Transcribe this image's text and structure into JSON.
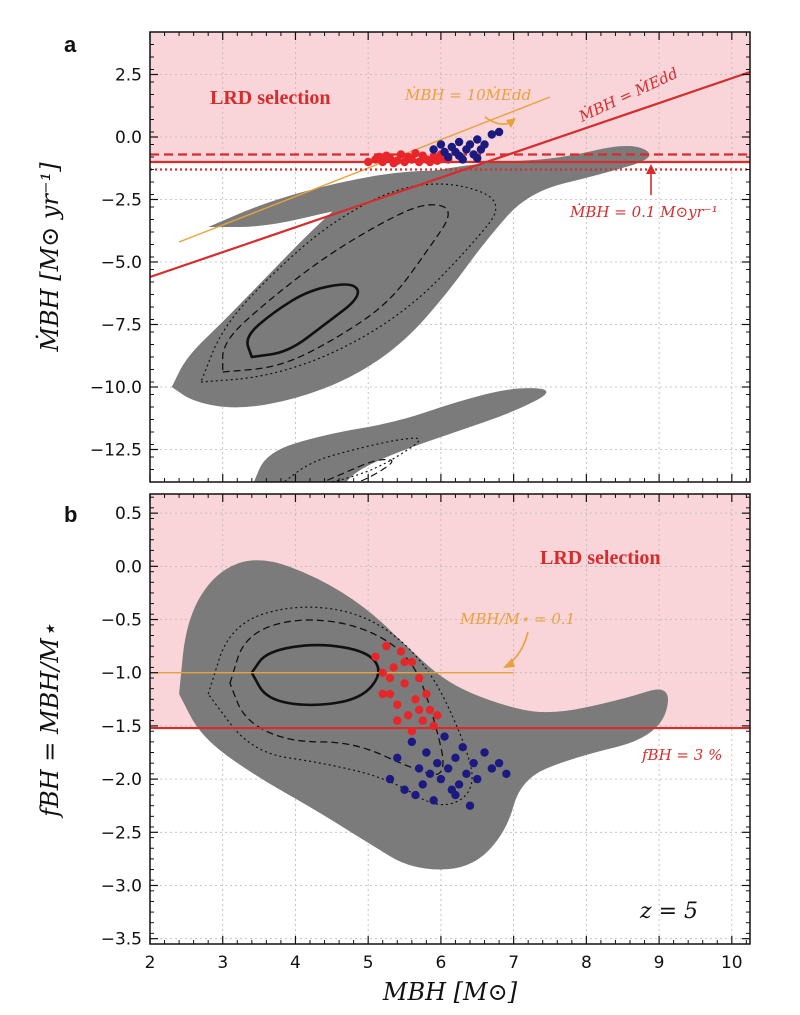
{
  "colors": {
    "selection_fill": "#f9d4d8",
    "red": "#d62c2c",
    "orange": "#e8a23a",
    "gray": "#7b7b7b",
    "blue": "#1a1a80",
    "red_points": "#e8262a"
  },
  "chart_data": [
    {
      "type": "scatter",
      "panel_label": "a",
      "xlim": [
        2,
        10.25
      ],
      "ylim": [
        -13.8,
        4.2
      ],
      "xticks": [
        2,
        3,
        4,
        5,
        6,
        7,
        8,
        9,
        10
      ],
      "yticks": [
        2.5,
        0.0,
        -2.5,
        -5.0,
        -7.5,
        -10.0,
        -12.5
      ],
      "ytick_labels": [
        "2.5",
        "0.0",
        "−2.5",
        "−5.0",
        "−7.5",
        "−10.0",
        "−12.5"
      ],
      "ylabel": "ṀBH [M⊙ yr⁻¹]",
      "grid": true,
      "selection_region_label": "LRD selection",
      "selection_lower_y": -1.0,
      "lines": [
        {
          "name": "ṀBH = ṀEdd",
          "x": [
            2,
            10.25
          ],
          "y": [
            -5.6,
            2.6
          ],
          "style": "solid",
          "color": "red"
        },
        {
          "name": "ṀBH = 10ṀEdd",
          "x": [
            2.4,
            7.5
          ],
          "y": [
            -4.2,
            1.6
          ],
          "style": "solid",
          "color": "orange"
        },
        {
          "name": "ṀBH = 0.1 M⊙yr⁻¹",
          "x": [
            2,
            10.25
          ],
          "y": [
            -1.0,
            -1.0
          ],
          "style": "solid",
          "color": "red"
        },
        {
          "name": "upper",
          "x": [
            2,
            10.25
          ],
          "y": [
            -0.7,
            -0.7
          ],
          "style": "dashed",
          "color": "red"
        },
        {
          "name": "lower",
          "x": [
            2,
            10.25
          ],
          "y": [
            -1.3,
            -1.3
          ],
          "style": "dotted",
          "color": "red"
        }
      ],
      "annotations": {
        "edd": "ṀBH = ṀEdd",
        "edd10": "ṀBH = 10ṀEdd",
        "mdot01": "ṀBH = 0.1 M⊙yr⁻¹"
      },
      "red_points": [
        [
          5.0,
          -1.0
        ],
        [
          5.1,
          -0.9
        ],
        [
          5.2,
          -1.0
        ],
        [
          5.3,
          -0.85
        ],
        [
          5.4,
          -0.95
        ],
        [
          5.45,
          -0.7
        ],
        [
          5.5,
          -1.0
        ],
        [
          5.55,
          -0.8
        ],
        [
          5.6,
          -0.9
        ],
        [
          5.7,
          -1.0
        ],
        [
          5.75,
          -0.75
        ],
        [
          5.8,
          -0.9
        ],
        [
          5.85,
          -1.0
        ],
        [
          5.9,
          -0.8
        ],
        [
          5.95,
          -0.95
        ],
        [
          6.0,
          -0.7
        ],
        [
          6.05,
          -0.85
        ],
        [
          5.25,
          -0.75
        ],
        [
          5.35,
          -1.05
        ],
        [
          5.65,
          -0.65
        ],
        [
          6.1,
          -0.9
        ],
        [
          5.15,
          -0.8
        ]
      ],
      "blue_points": [
        [
          5.9,
          -0.5
        ],
        [
          6.0,
          -0.3
        ],
        [
          6.1,
          -0.8
        ],
        [
          6.15,
          -0.4
        ],
        [
          6.2,
          -0.6
        ],
        [
          6.25,
          -0.2
        ],
        [
          6.3,
          -0.9
        ],
        [
          6.35,
          -0.5
        ],
        [
          6.4,
          -0.3
        ],
        [
          6.45,
          -0.7
        ],
        [
          6.5,
          -0.1
        ],
        [
          6.55,
          -0.5
        ],
        [
          6.6,
          -0.3
        ],
        [
          6.7,
          0.1
        ],
        [
          6.8,
          0.2
        ],
        [
          6.05,
          -0.6
        ],
        [
          6.5,
          -0.85
        ],
        [
          6.25,
          -0.75
        ]
      ]
    },
    {
      "type": "scatter",
      "panel_label": "b",
      "xlim": [
        2,
        10.25
      ],
      "ylim": [
        -3.55,
        0.68
      ],
      "xticks": [
        2,
        3,
        4,
        5,
        6,
        7,
        8,
        9,
        10
      ],
      "xtick_labels": [
        "2",
        "3",
        "4",
        "5",
        "6",
        "7",
        "8",
        "9",
        "10"
      ],
      "yticks": [
        0.5,
        0.0,
        -0.5,
        -1.0,
        -1.5,
        -2.0,
        -2.5,
        -3.0,
        -3.5
      ],
      "ytick_labels": [
        "0.5",
        "0.0",
        "−0.5",
        "−1.0",
        "−1.5",
        "−2.0",
        "−2.5",
        "−3.0",
        "−3.5"
      ],
      "xlabel": "MBH [M⊙]",
      "ylabel": "fBH = MBH/M⋆",
      "grid": true,
      "selection_region_label": "LRD selection",
      "selection_lower_y": -1.52,
      "lines": [
        {
          "name": "MBH/M⋆ = 0.1",
          "x": [
            2,
            7.0
          ],
          "y": [
            -1.0,
            -1.0
          ],
          "style": "solid",
          "color": "orange"
        },
        {
          "name": "fBH = 3 %",
          "x": [
            2,
            10.25
          ],
          "y": [
            -1.52,
            -1.52
          ],
          "style": "solid",
          "color": "red"
        }
      ],
      "annotations": {
        "ratio": "MBH/M⋆ = 0.1",
        "fbh": "fBH = 3 %",
        "redshift": "z = 5"
      },
      "red_points": [
        [
          5.1,
          -0.85
        ],
        [
          5.2,
          -1.0
        ],
        [
          5.25,
          -0.75
        ],
        [
          5.3,
          -1.2
        ],
        [
          5.35,
          -0.95
        ],
        [
          5.4,
          -1.3
        ],
        [
          5.45,
          -0.8
        ],
        [
          5.5,
          -1.1
        ],
        [
          5.55,
          -1.4
        ],
        [
          5.6,
          -0.9
        ],
        [
          5.65,
          -1.25
        ],
        [
          5.7,
          -1.05
        ],
        [
          5.75,
          -1.45
        ],
        [
          5.8,
          -1.2
        ],
        [
          5.85,
          -1.35
        ],
        [
          5.9,
          -1.5
        ],
        [
          5.4,
          -1.45
        ],
        [
          5.6,
          -1.55
        ],
        [
          5.3,
          -1.05
        ],
        [
          5.5,
          -0.9
        ],
        [
          5.7,
          -1.35
        ],
        [
          5.2,
          -1.2
        ],
        [
          5.95,
          -1.4
        ]
      ],
      "blue_points": [
        [
          5.3,
          -2.0
        ],
        [
          5.4,
          -1.8
        ],
        [
          5.5,
          -2.1
        ],
        [
          5.6,
          -1.65
        ],
        [
          5.7,
          -1.9
        ],
        [
          5.75,
          -2.05
        ],
        [
          5.8,
          -1.75
        ],
        [
          5.85,
          -1.95
        ],
        [
          5.9,
          -2.2
        ],
        [
          5.95,
          -1.85
        ],
        [
          6.0,
          -2.0
        ],
        [
          6.05,
          -1.6
        ],
        [
          6.1,
          -1.9
        ],
        [
          6.15,
          -2.1
        ],
        [
          6.2,
          -1.8
        ],
        [
          6.25,
          -2.05
        ],
        [
          6.3,
          -1.7
        ],
        [
          6.35,
          -1.95
        ],
        [
          6.4,
          -2.25
        ],
        [
          6.45,
          -1.85
        ],
        [
          6.5,
          -2.0
        ],
        [
          6.6,
          -1.75
        ],
        [
          6.7,
          -1.9
        ],
        [
          6.8,
          -1.85
        ],
        [
          6.9,
          -1.95
        ],
        [
          6.2,
          -2.15
        ],
        [
          5.65,
          -2.15
        ]
      ]
    }
  ]
}
